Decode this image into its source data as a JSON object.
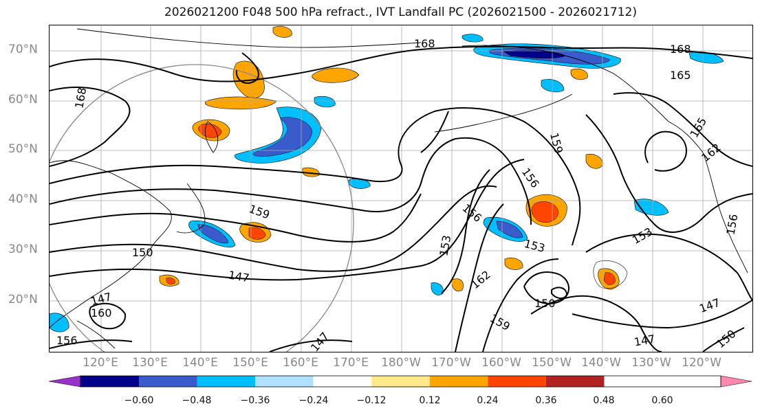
{
  "title": "2026021200 F048 500 hPa refract., IVT Landfall PC (2026021500 - 2026021712)",
  "lat_labels": [
    "70°N",
    "60°N",
    "50°N",
    "40°N",
    "30°N",
    "20°N"
  ],
  "lon_labels": [
    "120°E",
    "130°E",
    "140°E",
    "150°E",
    "160°E",
    "170°E",
    "180°W",
    "170°W",
    "160°W",
    "150°W",
    "140°W",
    "130°W",
    "120°W"
  ],
  "colorbar": {
    "ticks": [
      "−0.60",
      "−0.48",
      "−0.36",
      "−0.24",
      "−0.12",
      "0.12",
      "0.24",
      "0.36",
      "0.48",
      "0.60"
    ],
    "colors": [
      "#9932cc",
      "#00008b",
      "#3a5bcc",
      "#00bfff",
      "#b0e2ff",
      "#ffffff",
      "#ffe98a",
      "#ffa500",
      "#ff4500",
      "#b22222",
      "#ff88b0"
    ]
  },
  "contour_labels": [
    {
      "text": "168"
    },
    {
      "text": "168"
    },
    {
      "text": "168"
    },
    {
      "text": "165"
    },
    {
      "text": "165"
    },
    {
      "text": "162"
    },
    {
      "text": "159"
    },
    {
      "text": "156"
    },
    {
      "text": "159"
    },
    {
      "text": "150"
    },
    {
      "text": "147"
    },
    {
      "text": "156"
    },
    {
      "text": "153"
    },
    {
      "text": "153"
    },
    {
      "text": "153"
    },
    {
      "text": "162"
    },
    {
      "text": "150"
    },
    {
      "text": "159"
    },
    {
      "text": "147"
    },
    {
      "text": "147"
    },
    {
      "text": "150"
    },
    {
      "text": "147"
    },
    {
      "text": "160"
    },
    {
      "text": "156"
    },
    {
      "text": "147"
    },
    {
      "text": "156"
    }
  ]
}
